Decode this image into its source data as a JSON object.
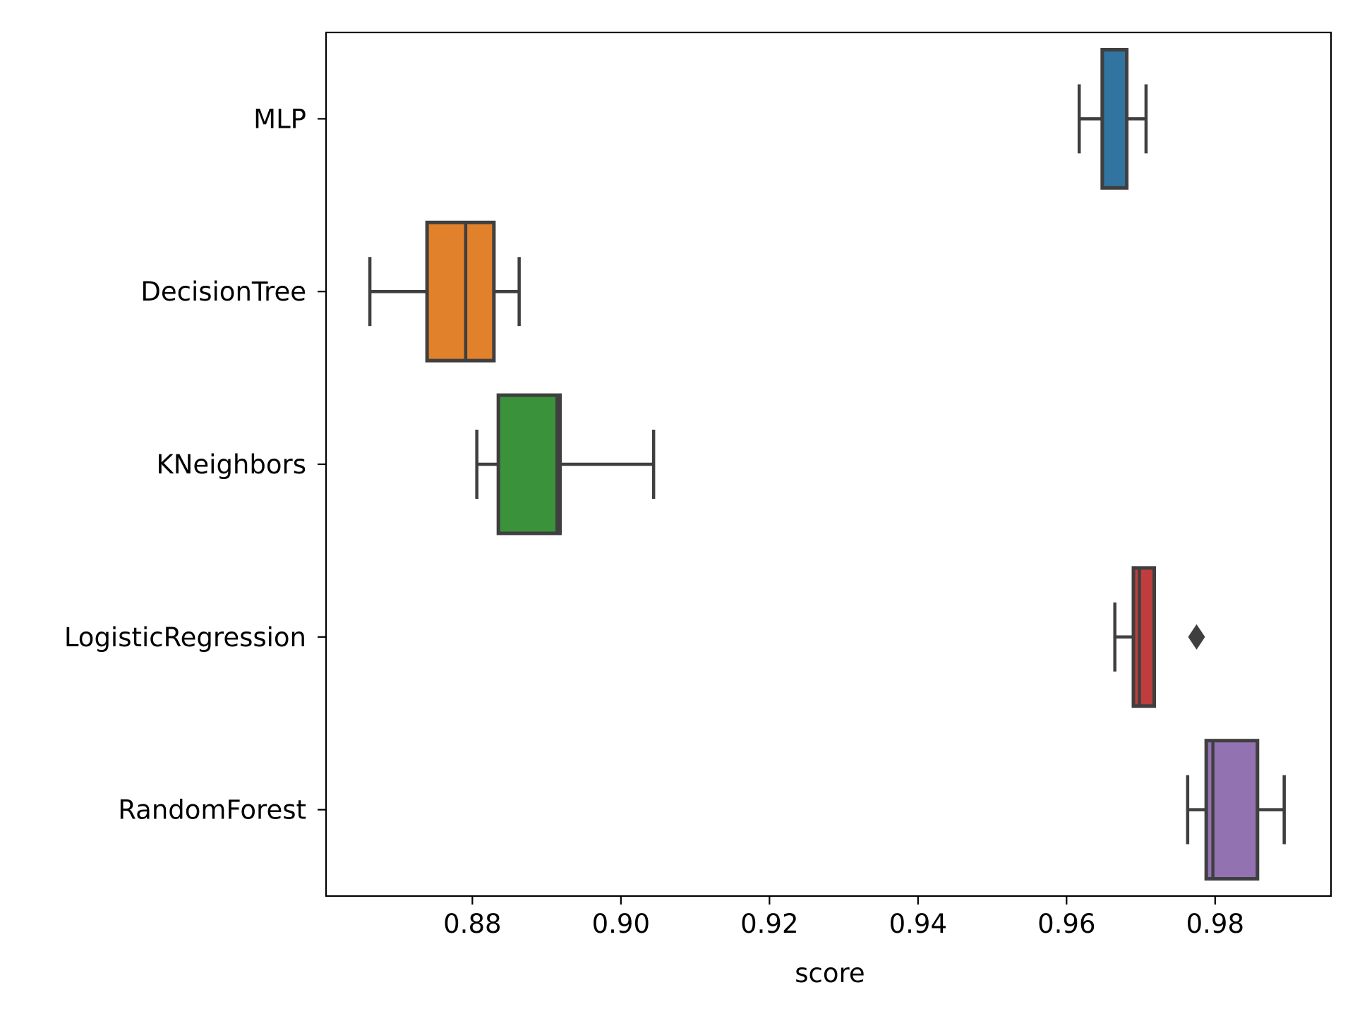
{
  "chart_data": {
    "type": "boxplot",
    "orientation": "horizontal",
    "title": "",
    "xlabel": "score",
    "ylabel": "",
    "xlim": [
      0.8603,
      0.9956
    ],
    "xticks": [
      0.88,
      0.9,
      0.92,
      0.94,
      0.96,
      0.98
    ],
    "xtick_labels": [
      "0.88",
      "0.90",
      "0.92",
      "0.94",
      "0.96",
      "0.98"
    ],
    "grid": false,
    "legend": "none",
    "categories": [
      "MLP",
      "DecisionTree",
      "KNeighbors",
      "LogisticRegression",
      "RandomForest"
    ],
    "boxes": [
      {
        "category": "MLP",
        "whisker_low": 0.9617,
        "q1": 0.9648,
        "median": 0.9648,
        "q3": 0.9681,
        "whisker_high": 0.9707,
        "outliers": [],
        "color": "#3274a1"
      },
      {
        "category": "DecisionTree",
        "whisker_low": 0.8662,
        "q1": 0.8739,
        "median": 0.8791,
        "q3": 0.8829,
        "whisker_high": 0.8863,
        "outliers": [],
        "color": "#e1812c"
      },
      {
        "category": "KNeighbors",
        "whisker_low": 0.8806,
        "q1": 0.8835,
        "median": 0.8914,
        "q3": 0.8918,
        "whisker_high": 0.9044,
        "outliers": [],
        "color": "#3a923a"
      },
      {
        "category": "LogisticRegression",
        "whisker_low": 0.9665,
        "q1": 0.969,
        "median": 0.9698,
        "q3": 0.9718,
        "whisker_high": 0.9718,
        "outliers": [
          0.9775
        ],
        "color": "#c03d3e"
      },
      {
        "category": "RandomForest",
        "whisker_low": 0.9763,
        "q1": 0.9788,
        "median": 0.9797,
        "q3": 0.9857,
        "whisker_high": 0.9893,
        "outliers": [],
        "color": "#9372b2"
      }
    ],
    "line_color": "#3f3f3f"
  }
}
